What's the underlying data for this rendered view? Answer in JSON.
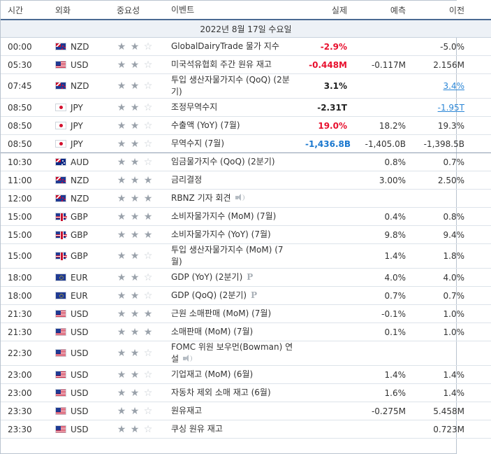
{
  "headers": {
    "time": "시간",
    "currency": "외화",
    "importance": "중요성",
    "event": "이벤트",
    "actual": "실제",
    "forecast": "예측",
    "previous": "이전"
  },
  "date_label": "2022년 8월 17일 수요일",
  "colors": {
    "negative_actual": "#e8102e",
    "positive_surprise": "#1b78cf",
    "header_rule": "#4a6a93",
    "date_row_bg": "#edf1f6"
  },
  "rows": [
    {
      "time": "00:00",
      "currency": "NZD",
      "flag_icon": "new-zealand-flag-icon",
      "stars": 2,
      "event": "GlobalDairyTrade 물가 지수",
      "actual": "-2.9%",
      "actual_color": "red",
      "forecast": "",
      "previous": "-5.0%"
    },
    {
      "time": "05:30",
      "currency": "USD",
      "flag_icon": "us-flag-icon",
      "stars": 2,
      "event": "미국석유협회 주간 원유 재고",
      "actual": "-0.448M",
      "actual_color": "red",
      "forecast": "-0.117M",
      "previous": "2.156M"
    },
    {
      "time": "07:45",
      "currency": "NZD",
      "flag_icon": "new-zealand-flag-icon",
      "stars": 2,
      "event": "투입 생산자물가지수 (QoQ) (2분기)",
      "actual": "3.1%",
      "actual_color": "black",
      "forecast": "",
      "previous": "3.4%",
      "previous_link": true
    },
    {
      "time": "08:50",
      "currency": "JPY",
      "flag_icon": "japan-flag-icon",
      "stars": 2,
      "event": "조정무역수지",
      "actual": "-2.31T",
      "actual_color": "black",
      "forecast": "",
      "previous": "-1.95T",
      "previous_link": true
    },
    {
      "time": "08:50",
      "currency": "JPY",
      "flag_icon": "japan-flag-icon",
      "stars": 2,
      "event": "수출액 (YoY) (7월)",
      "actual": "19.0%",
      "actual_color": "red",
      "forecast": "18.2%",
      "previous": "19.3%"
    },
    {
      "time": "08:50",
      "currency": "JPY",
      "flag_icon": "japan-flag-icon",
      "stars": 2,
      "event": "무역수지 (7월)",
      "actual": "-1,436.8B",
      "actual_color": "blue",
      "forecast": "-1,405.0B",
      "previous": "-1,398.5B"
    },
    {
      "time": "10:30",
      "currency": "AUD",
      "flag_icon": "australia-flag-icon",
      "stars": 2,
      "event": "임금물가지수 (QoQ) (2분기)",
      "actual": "",
      "forecast": "0.8%",
      "previous": "0.7%"
    },
    {
      "time": "11:00",
      "currency": "NZD",
      "flag_icon": "new-zealand-flag-icon",
      "stars": 3,
      "event": "금리결정",
      "actual": "",
      "forecast": "3.00%",
      "previous": "2.50%"
    },
    {
      "time": "12:00",
      "currency": "NZD",
      "flag_icon": "new-zealand-flag-icon",
      "stars": 3,
      "event": "RBNZ 기자 회견",
      "speech": true,
      "actual": "",
      "forecast": "",
      "previous": ""
    },
    {
      "time": "15:00",
      "currency": "GBP",
      "flag_icon": "uk-flag-icon",
      "stars": 3,
      "event": "소비자물가지수 (MoM) (7월)",
      "actual": "",
      "forecast": "0.4%",
      "previous": "0.8%"
    },
    {
      "time": "15:00",
      "currency": "GBP",
      "flag_icon": "uk-flag-icon",
      "stars": 3,
      "event": "소비자물가지수 (YoY) (7월)",
      "actual": "",
      "forecast": "9.8%",
      "previous": "9.4%"
    },
    {
      "time": "15:00",
      "currency": "GBP",
      "flag_icon": "uk-flag-icon",
      "stars": 2,
      "event": "투입 생산자물가지수 (MoM) (7월)",
      "actual": "",
      "forecast": "1.4%",
      "previous": "1.8%"
    },
    {
      "time": "18:00",
      "currency": "EUR",
      "flag_icon": "eu-flag-icon",
      "stars": 2,
      "event": "GDP (YoY) (2분기)",
      "preliminary": true,
      "preliminary_mark": "P",
      "actual": "",
      "forecast": "4.0%",
      "previous": "4.0%"
    },
    {
      "time": "18:00",
      "currency": "EUR",
      "flag_icon": "eu-flag-icon",
      "stars": 2,
      "event": "GDP (QoQ) (2분기)",
      "preliminary": true,
      "preliminary_mark": "P",
      "actual": "",
      "forecast": "0.7%",
      "previous": "0.7%"
    },
    {
      "time": "21:30",
      "currency": "USD",
      "flag_icon": "us-flag-icon",
      "stars": 3,
      "event": "근원 소매판매 (MoM) (7월)",
      "actual": "",
      "forecast": "-0.1%",
      "previous": "1.0%"
    },
    {
      "time": "21:30",
      "currency": "USD",
      "flag_icon": "us-flag-icon",
      "stars": 3,
      "event": "소매판매 (MoM) (7월)",
      "actual": "",
      "forecast": "0.1%",
      "previous": "1.0%"
    },
    {
      "time": "22:30",
      "currency": "USD",
      "flag_icon": "us-flag-icon",
      "stars": 2,
      "event": "FOMC 위원 보우먼(Bowman) 연설",
      "speech": true,
      "actual": "",
      "forecast": "",
      "previous": ""
    },
    {
      "time": "23:00",
      "currency": "USD",
      "flag_icon": "us-flag-icon",
      "stars": 2,
      "event": "기업재고 (MoM) (6월)",
      "actual": "",
      "forecast": "1.4%",
      "previous": "1.4%"
    },
    {
      "time": "23:00",
      "currency": "USD",
      "flag_icon": "us-flag-icon",
      "stars": 2,
      "event": "자동차 제외 소매 재고 (6월)",
      "actual": "",
      "forecast": "1.6%",
      "previous": "1.4%"
    },
    {
      "time": "23:30",
      "currency": "USD",
      "flag_icon": "us-flag-icon",
      "stars": 2,
      "event": "원유재고",
      "actual": "",
      "forecast": "-0.275M",
      "previous": "5.458M"
    },
    {
      "time": "23:30",
      "currency": "USD",
      "flag_icon": "us-flag-icon",
      "stars": 2,
      "event": "쿠싱 원유 재고",
      "actual": "",
      "forecast": "",
      "previous": "0.723M"
    }
  ]
}
